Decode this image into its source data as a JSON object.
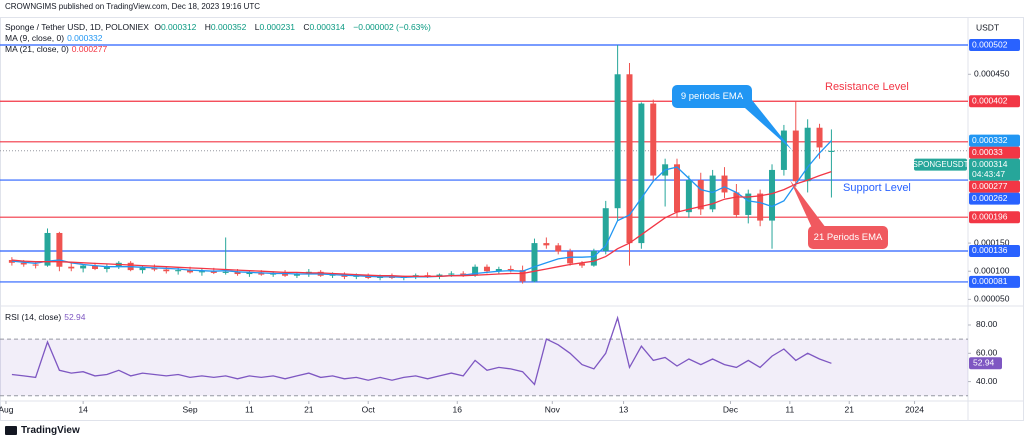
{
  "header": {
    "publisher": "CROWNGIMS published on TradingView.com, Dec 18, 2023 19:16 UTC",
    "footer": "TradingView"
  },
  "chart_data": [
    {
      "type": "candlestick",
      "title": "Sponge / Tether USD, 1D, POLONIEX",
      "currency": "USDT",
      "legend_labels": [
        "O",
        "H",
        "L",
        "C"
      ],
      "change": "−0.000002 (−0.63%)",
      "symbol": "SPONGEUSDT",
      "countdown": "04:43:47",
      "x": [
        "2023-08-02",
        "2023-08-04",
        "2023-08-06",
        "2023-08-08",
        "2023-08-10",
        "2023-08-12",
        "2023-08-14",
        "2023-08-16",
        "2023-08-18",
        "2023-08-20",
        "2023-08-22",
        "2023-08-24",
        "2023-08-26",
        "2023-08-28",
        "2023-08-30",
        "2023-09-01",
        "2023-09-03",
        "2023-09-05",
        "2023-09-07",
        "2023-09-09",
        "2023-09-11",
        "2023-09-13",
        "2023-09-15",
        "2023-09-17",
        "2023-09-19",
        "2023-09-21",
        "2023-09-23",
        "2023-09-25",
        "2023-09-27",
        "2023-09-29",
        "2023-10-01",
        "2023-10-03",
        "2023-10-05",
        "2023-10-07",
        "2023-10-09",
        "2023-10-11",
        "2023-10-13",
        "2023-10-15",
        "2023-10-17",
        "2023-10-19",
        "2023-10-21",
        "2023-10-23",
        "2023-10-25",
        "2023-10-27",
        "2023-10-29",
        "2023-10-31",
        "2023-11-02",
        "2023-11-04",
        "2023-11-06",
        "2023-11-08",
        "2023-11-10",
        "2023-11-12",
        "2023-11-14",
        "2023-11-16",
        "2023-11-18",
        "2023-11-20",
        "2023-11-22",
        "2023-11-24",
        "2023-11-26",
        "2023-11-28",
        "2023-11-30",
        "2023-12-02",
        "2023-12-04",
        "2023-12-06",
        "2023-12-08",
        "2023-12-10",
        "2023-12-12",
        "2023-12-14",
        "2023-12-16",
        "2023-12-18"
      ],
      "open": [
        0.00012,
        0.000115,
        0.000112,
        0.00011,
        0.000168,
        0.000108,
        0.000105,
        0.00011,
        0.000104,
        0.000108,
        0.000115,
        0.000102,
        0.000106,
        0.000103,
        0.0001,
        0.000102,
        9.8e-05,
        0.0001,
        9.7e-05,
        9.9e-05,
        9.5e-05,
        9.8e-05,
        9.4e-05,
        9.7e-05,
        9.2e-05,
        9.5e-05,
        9.9e-05,
        9.2e-05,
        9.4e-05,
        9e-05,
        9.2e-05,
        8.8e-05,
        9.1e-05,
        8.8e-05,
        9e-05,
        9.3e-05,
        9e-05,
        9.4e-05,
        9.6e-05,
        9.3e-05,
        0.000108,
        0.0001,
        0.000104,
        0.000102,
        8.2e-05,
        0.00015,
        0.000146,
        0.000135,
        0.000114,
        0.00011,
        0.000136,
        0.000212,
        0.00045,
        0.00015,
        0.000398,
        0.00027,
        0.00029,
        0.000205,
        0.000262,
        0.00021,
        0.00027,
        0.00024,
        0.0002,
        0.000238,
        0.00019,
        0.00028,
        0.00035,
        0.00026,
        0.000355,
        0.000312
      ],
      "high": [
        0.000125,
        0.00012,
        0.000118,
        0.000176,
        0.00017,
        0.000115,
        0.000112,
        0.000115,
        0.000112,
        0.000118,
        0.000118,
        0.00011,
        0.000112,
        0.000108,
        0.000106,
        0.000108,
        0.000104,
        0.000106,
        0.00016,
        0.000104,
        0.000102,
        0.000102,
        0.0001,
        0.000102,
        9.8e-05,
        0.000104,
        0.000102,
        9.8e-05,
        9.8e-05,
        9.6e-05,
        9.6e-05,
        9.4e-05,
        9.6e-05,
        9.2e-05,
        9.6e-05,
        9.8e-05,
        9.6e-05,
        0.0001,
        0.0001,
        0.000112,
        0.000112,
        0.000108,
        0.00011,
        0.00011,
        0.000158,
        0.00016,
        0.00015,
        0.00014,
        0.000118,
        0.00014,
        0.000225,
        0.000502,
        0.00047,
        0.0004,
        0.000405,
        0.0003,
        0.0003,
        0.00027,
        0.000275,
        0.00028,
        0.000285,
        0.000255,
        0.000245,
        0.000245,
        0.00029,
        0.00036,
        0.000402,
        0.00037,
        0.000362,
        0.000352
      ],
      "low": [
        0.00011,
        0.000108,
        0.000105,
        0.000108,
        0.0001,
        0.0001,
        9.8e-05,
        0.000102,
        9.8e-05,
        0.000104,
        0.0001,
        9.6e-05,
        0.0001,
        9.6e-05,
        9.4e-05,
        9.6e-05,
        9.2e-05,
        9.5e-05,
        9.4e-05,
        9.2e-05,
        9e-05,
        9.2e-05,
        9e-05,
        9e-05,
        8.8e-05,
        9e-05,
        9e-05,
        8.8e-05,
        8.6e-05,
        8.6e-05,
        8.6e-05,
        8.4e-05,
        8.6e-05,
        8.4e-05,
        8.6e-05,
        8.8e-05,
        8.6e-05,
        9e-05,
        9e-05,
        9e-05,
        9.6e-05,
        9.6e-05,
        9.8e-05,
        7.8e-05,
        8e-05,
        0.00014,
        0.00013,
        0.00011,
        0.000106,
        0.000108,
        0.00013,
        0.00019,
        0.00011,
        0.00014,
        0.00026,
        0.000215,
        0.000195,
        0.000195,
        0.0002,
        0.000205,
        0.00023,
        0.000195,
        0.000185,
        0.00018,
        0.00014,
        0.00027,
        0.00025,
        0.00024,
        0.0003,
        0.000231
      ],
      "close": [
        0.000115,
        0.000112,
        0.00011,
        0.000168,
        0.000108,
        0.000105,
        0.00011,
        0.000104,
        0.000108,
        0.000115,
        0.000102,
        0.000106,
        0.000103,
        0.0001,
        0.000102,
        9.8e-05,
        0.0001,
        9.7e-05,
        9.9e-05,
        9.5e-05,
        9.8e-05,
        9.4e-05,
        9.7e-05,
        9.2e-05,
        9.5e-05,
        9.9e-05,
        9.2e-05,
        9.4e-05,
        9e-05,
        9.2e-05,
        8.8e-05,
        9.1e-05,
        8.8e-05,
        9e-05,
        9.3e-05,
        9e-05,
        9.4e-05,
        9.6e-05,
        9.3e-05,
        0.000108,
        0.0001,
        0.000104,
        0.000102,
        8.2e-05,
        0.00015,
        0.000146,
        0.000135,
        0.000114,
        0.00011,
        0.000136,
        0.000212,
        0.00045,
        0.00015,
        0.000398,
        0.00027,
        0.00029,
        0.000205,
        0.000262,
        0.00021,
        0.00027,
        0.00024,
        0.0002,
        0.000238,
        0.00019,
        0.00028,
        0.00035,
        0.00026,
        0.000355,
        0.00032,
        0.000314
      ],
      "up_color": "#26a69a",
      "down_color": "#ef5350",
      "series": [
        {
          "name": "MA (9, close, 0)",
          "color": "#2196f3",
          "values": [
            0.000118,
            0.000116,
            0.000114,
            0.000118,
            0.00012,
            0.000115,
            0.000112,
            0.00011,
            0.000108,
            0.000108,
            0.000108,
            0.000107,
            0.000106,
            0.000105,
            0.000104,
            0.000102,
            0.000101,
            0.0001,
            0.000101,
            9.9e-05,
            9.8e-05,
            9.7e-05,
            9.6e-05,
            9.6e-05,
            9.5e-05,
            9.5e-05,
            9.5e-05,
            9.4e-05,
            9.3e-05,
            9.2e-05,
            9.1e-05,
            9e-05,
            9e-05,
            8.9e-05,
            9e-05,
            9e-05,
            9.1e-05,
            9.2e-05,
            9.3e-05,
            9.6e-05,
            9.8e-05,
            0.0001,
            0.000101,
            0.0001,
            0.000108,
            0.000115,
            0.000122,
            0.000125,
            0.000125,
            0.000126,
            0.000145,
            0.00019,
            0.0002,
            0.00023,
            0.00026,
            0.00028,
            0.000285,
            0.000265,
            0.000245,
            0.00024,
            0.00025,
            0.00024,
            0.000225,
            0.000222,
            0.000215,
            0.000225,
            0.000255,
            0.000285,
            0.00031,
            0.000332
          ]
        },
        {
          "name": "MA (21, close, 0)",
          "color": "#f23645",
          "values": [
            0.00012,
            0.000118,
            0.000117,
            0.000117,
            0.000117,
            0.000116,
            0.000115,
            0.000114,
            0.000113,
            0.000112,
            0.000111,
            0.00011,
            0.000109,
            0.000108,
            0.000107,
            0.000106,
            0.000105,
            0.000104,
            0.000103,
            0.000102,
            0.000101,
            0.0001,
            9.9e-05,
            9.8e-05,
            9.8e-05,
            9.7e-05,
            9.7e-05,
            9.6e-05,
            9.5e-05,
            9.4e-05,
            9.3e-05,
            9.2e-05,
            9.2e-05,
            9.1e-05,
            9.1e-05,
            9.1e-05,
            9.1e-05,
            9.2e-05,
            9.2e-05,
            9.3e-05,
            9.4e-05,
            9.5e-05,
            9.6e-05,
            9.6e-05,
            0.0001,
            0.000104,
            0.000108,
            0.000112,
            0.000115,
            0.000118,
            0.000126,
            0.00014,
            0.00015,
            0.000165,
            0.00018,
            0.000195,
            0.000205,
            0.00021,
            0.000215,
            0.00022,
            0.000228,
            0.000232,
            0.000232,
            0.000234,
            0.000238,
            0.000245,
            0.000255,
            0.000262,
            0.00027,
            0.000277
          ]
        }
      ],
      "levels": [
        {
          "value": 0.000502,
          "color": "#2962ff"
        },
        {
          "value": 0.000402,
          "color": "#f23645"
        },
        {
          "value": 0.00033,
          "color": "#f23645"
        },
        {
          "value": 0.000262,
          "color": "#2962ff"
        },
        {
          "value": 0.000196,
          "color": "#f23645"
        },
        {
          "value": 0.000136,
          "color": "#2962ff"
        },
        {
          "value": 8.1e-05,
          "color": "#2962ff"
        }
      ],
      "annotations": [
        {
          "text": "Resistance Level",
          "color": "#f23645"
        },
        {
          "text": "Support Level",
          "color": "#2962ff"
        },
        {
          "text": "9 periods EMA",
          "color": "#2196f3"
        },
        {
          "text": "21 Periods EMA",
          "color": "#f0595f"
        }
      ],
      "xlim": [
        "2023-07-31",
        "2024-01-10"
      ],
      "xticks": [
        {
          "value": "2023-08-01",
          "label": "Aug"
        },
        {
          "value": "2023-08-14",
          "label": "14"
        },
        {
          "value": "2023-09-01",
          "label": "Sep"
        },
        {
          "value": "2023-09-11",
          "label": "11"
        },
        {
          "value": "2023-09-21",
          "label": "21"
        },
        {
          "value": "2023-10-01",
          "label": "Oct"
        },
        {
          "value": "2023-10-16",
          "label": "16"
        },
        {
          "value": "2023-11-01",
          "label": "Nov"
        },
        {
          "value": "2023-11-13",
          "label": "13"
        },
        {
          "value": "2023-12-01",
          "label": "Dec"
        },
        {
          "value": "2023-12-11",
          "label": "11"
        },
        {
          "value": "2023-12-21",
          "label": "21"
        },
        {
          "value": "2024-01-01",
          "label": "2024"
        }
      ],
      "ylim": [
        4e-05,
        0.00055
      ],
      "yticks": [
        {
          "value": 0.00045,
          "label": "0.000450"
        },
        {
          "value": 0.00015,
          "label": "0.000150"
        },
        {
          "value": 0.0001,
          "label": "0.000100"
        },
        {
          "value": 5e-05,
          "label": "0.000050"
        }
      ]
    },
    {
      "type": "line",
      "series": [
        {
          "name": "RSI (14, close)",
          "color": "#7e57c2",
          "values": [
            45,
            44,
            43,
            68,
            48,
            46,
            47,
            44,
            45,
            48,
            44,
            46,
            45,
            44,
            45,
            43,
            44,
            43,
            44,
            42,
            44,
            43,
            44,
            42,
            44,
            46,
            43,
            44,
            42,
            43,
            41,
            43,
            41,
            43,
            44,
            42,
            44,
            46,
            44,
            55,
            48,
            50,
            49,
            47,
            38,
            70,
            66,
            60,
            52,
            49,
            60,
            85,
            50,
            65,
            55,
            57,
            51,
            56,
            52,
            56,
            52,
            50,
            55,
            50,
            58,
            63,
            55,
            60,
            56,
            52.94
          ]
        }
      ],
      "band": [
        30,
        70
      ],
      "band_color": "#7e57c2",
      "ylim": [
        27,
        92
      ],
      "yticks": [
        {
          "value": 80,
          "label": "80.00"
        },
        {
          "value": 60,
          "label": "60.00"
        },
        {
          "value": 40,
          "label": "40.00"
        }
      ]
    }
  ]
}
